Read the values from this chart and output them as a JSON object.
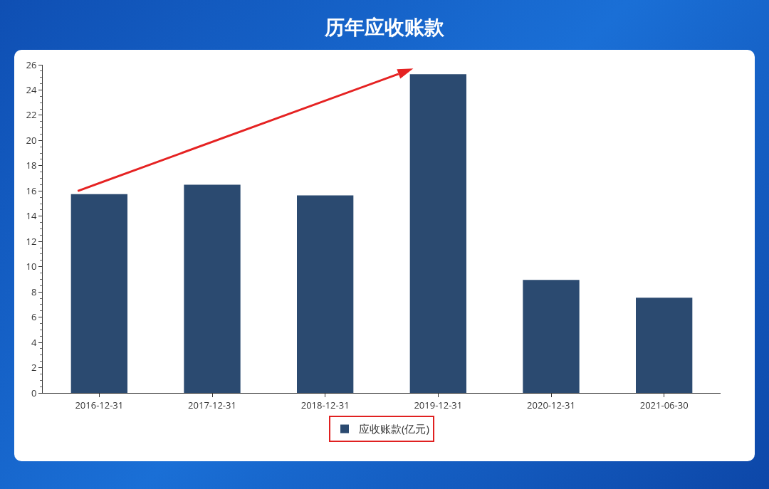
{
  "chart_data": {
    "type": "bar",
    "title": "历年应收账款",
    "categories": [
      "2016-12-31",
      "2017-12-31",
      "2018-12-31",
      "2019-12-31",
      "2020-12-31",
      "2021-06-30"
    ],
    "series": [
      {
        "name": "应收账款(亿元)",
        "color": "#2b4a70",
        "values": [
          15.75,
          16.5,
          15.65,
          25.25,
          8.95,
          7.55
        ]
      }
    ],
    "ylim": [
      0,
      26
    ],
    "yticks": [
      0,
      2,
      4,
      6,
      8,
      10,
      12,
      14,
      16,
      18,
      20,
      22,
      24,
      26
    ],
    "grid": false,
    "legend": "bottom"
  }
}
